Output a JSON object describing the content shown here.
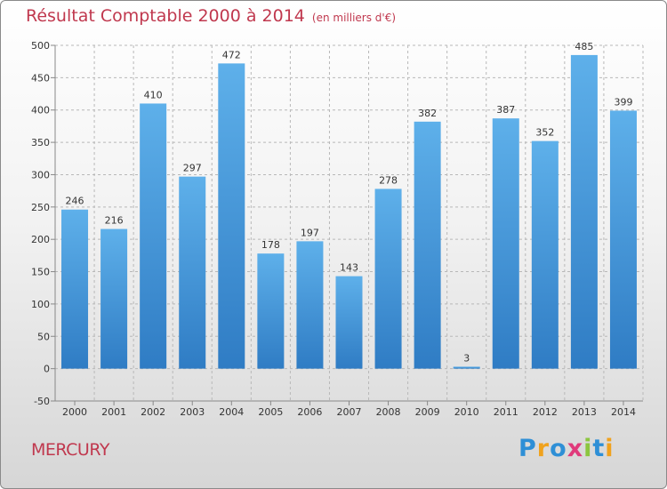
{
  "chart_data": {
    "type": "bar",
    "title": "Résultat Comptable 2000 à 2014",
    "subtitle": "(en milliers d'€)",
    "categories": [
      "2000",
      "2001",
      "2002",
      "2003",
      "2004",
      "2005",
      "2006",
      "2007",
      "2008",
      "2009",
      "2010",
      "2011",
      "2012",
      "2013",
      "2014"
    ],
    "values": [
      246,
      216,
      410,
      297,
      472,
      178,
      197,
      143,
      278,
      382,
      3,
      387,
      352,
      485,
      399
    ],
    "ylim": [
      -50,
      500
    ],
    "yticks": [
      -50,
      0,
      50,
      100,
      150,
      200,
      250,
      300,
      350,
      400,
      450,
      500
    ],
    "xlabel": "",
    "ylabel": "",
    "grid": true,
    "bar_color": "#3d8fd8",
    "bar_color_light": "#5eb0ea"
  },
  "commune": "MERCURY",
  "brand": {
    "letters": [
      "P",
      "r",
      "o",
      "x",
      "i",
      "t",
      "i"
    ],
    "colors": [
      "#2e8fd6",
      "#f0a21d",
      "#2e8fd6",
      "#e03a7b",
      "#8cc63f",
      "#2e8fd6",
      "#f0a21d"
    ]
  },
  "colors": {
    "title": "#c0384e",
    "grid": "#b8b8b8",
    "axis": "#888888"
  }
}
